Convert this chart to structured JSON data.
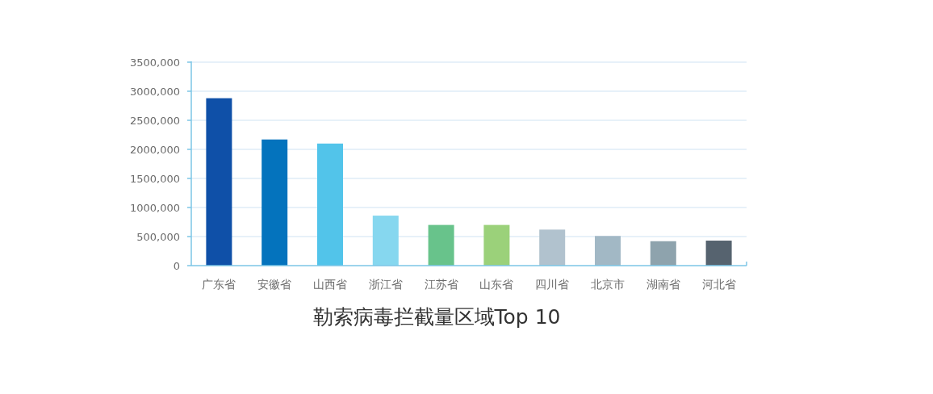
{
  "chart_data": {
    "type": "bar",
    "title": "勒索病毒拦截量区域Top 10",
    "categories": [
      "广东省",
      "安徽省",
      "山西省",
      "浙江省",
      "江苏省",
      "山东省",
      "四川省",
      "北京市",
      "湖南省",
      "河北省"
    ],
    "values": [
      2880000,
      2170000,
      2100000,
      860000,
      700000,
      700000,
      620000,
      510000,
      420000,
      430000
    ],
    "colors": [
      "#0f50a8",
      "#0473bd",
      "#52c4ea",
      "#86d7ef",
      "#68c38b",
      "#9bd17a",
      "#b1c2ce",
      "#a2b8c5",
      "#8ea3ad",
      "#56636f"
    ],
    "ylim": [
      0,
      3500000
    ],
    "yticks": [
      0,
      {
        "value": 500000,
        "label": "500,000"
      },
      {
        "value": 1000000,
        "label": "1000,000"
      },
      {
        "value": 1500000,
        "label": "1500,000"
      },
      {
        "value": 2000000,
        "label": "2000,000"
      },
      {
        "value": 2500000,
        "label": "2500,000"
      },
      {
        "value": 3000000,
        "label": "3000,000"
      },
      {
        "value": 3500000,
        "label": "3500,000"
      }
    ],
    "grid": "y"
  }
}
